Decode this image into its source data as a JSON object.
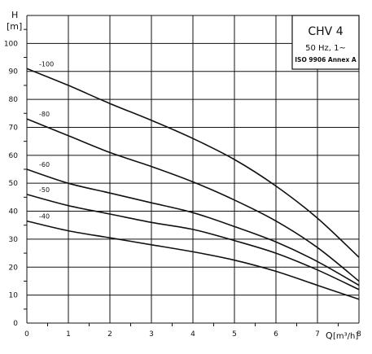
{
  "chart_data": {
    "type": "line",
    "title": "CHV 4",
    "subtitle": "50 Hz, 1~",
    "standard": "ISO 9906 Annex A",
    "y_axis_symbol": "H",
    "y_axis_unit": "[m]",
    "x_axis_symbol": "Q",
    "x_axis_unit": "[m³/h]",
    "xlim": [
      0,
      8
    ],
    "ylim": [
      0,
      110
    ],
    "x_ticks": [
      "0",
      "1",
      "2",
      "3",
      "4",
      "5",
      "6",
      "7",
      "8"
    ],
    "y_ticks": [
      "0",
      "10",
      "20",
      "30",
      "40",
      "50",
      "60",
      "70",
      "80",
      "90",
      "100"
    ],
    "grid": true,
    "series": [
      {
        "name": "-100",
        "x": [
          0,
          1,
          2,
          3,
          4,
          5,
          6,
          7,
          8
        ],
        "y": [
          91,
          85,
          78.5,
          72.5,
          66,
          58.5,
          49,
          37.5,
          23.5
        ]
      },
      {
        "name": "-80",
        "x": [
          0,
          1,
          2,
          3,
          4,
          5,
          6,
          7,
          8
        ],
        "y": [
          73,
          67,
          61,
          56,
          50.5,
          44,
          36.5,
          27,
          15
        ]
      },
      {
        "name": "-60",
        "x": [
          0,
          1,
          2,
          3,
          4,
          5,
          6,
          7,
          8
        ],
        "y": [
          55,
          50,
          46.5,
          43,
          39.5,
          34.5,
          29,
          22,
          13.5
        ]
      },
      {
        "name": "-50",
        "x": [
          0,
          1,
          2,
          3,
          4,
          5,
          6,
          7,
          8
        ],
        "y": [
          46,
          42,
          39,
          36,
          33.5,
          29.5,
          25,
          19,
          12
        ]
      },
      {
        "name": "-40",
        "x": [
          0,
          1,
          2,
          3,
          4,
          5,
          6,
          7,
          8
        ],
        "y": [
          36.5,
          33,
          30.5,
          28,
          25.5,
          22.5,
          18.5,
          13.5,
          8.5
        ]
      }
    ]
  }
}
